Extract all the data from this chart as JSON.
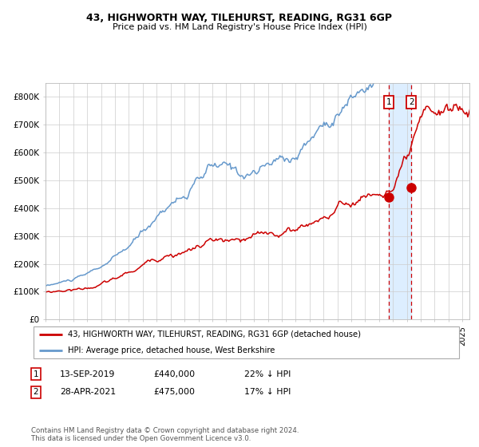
{
  "title1": "43, HIGHWORTH WAY, TILEHURST, READING, RG31 6GP",
  "title2": "Price paid vs. HM Land Registry's House Price Index (HPI)",
  "legend_line1": "43, HIGHWORTH WAY, TILEHURST, READING, RG31 6GP (detached house)",
  "legend_line2": "HPI: Average price, detached house, West Berkshire",
  "footer": "Contains HM Land Registry data © Crown copyright and database right 2024.\nThis data is licensed under the Open Government Licence v3.0.",
  "hpi_color": "#6699cc",
  "price_color": "#cc0000",
  "marker_color": "#cc0000",
  "vline_color": "#cc0000",
  "shade_color": "#ddeeff",
  "ylim": [
    0,
    850000
  ],
  "yticks": [
    0,
    100000,
    200000,
    300000,
    400000,
    500000,
    600000,
    700000,
    800000
  ],
  "ytick_labels": [
    "£0",
    "£100K",
    "£200K",
    "£300K",
    "£400K",
    "£500K",
    "£600K",
    "£700K",
    "£800K"
  ],
  "sale1_year": 2019.71,
  "sale1_price": 440000,
  "sale2_year": 2021.32,
  "sale2_price": 475000,
  "start_year": 1995,
  "end_year": 2025.5
}
